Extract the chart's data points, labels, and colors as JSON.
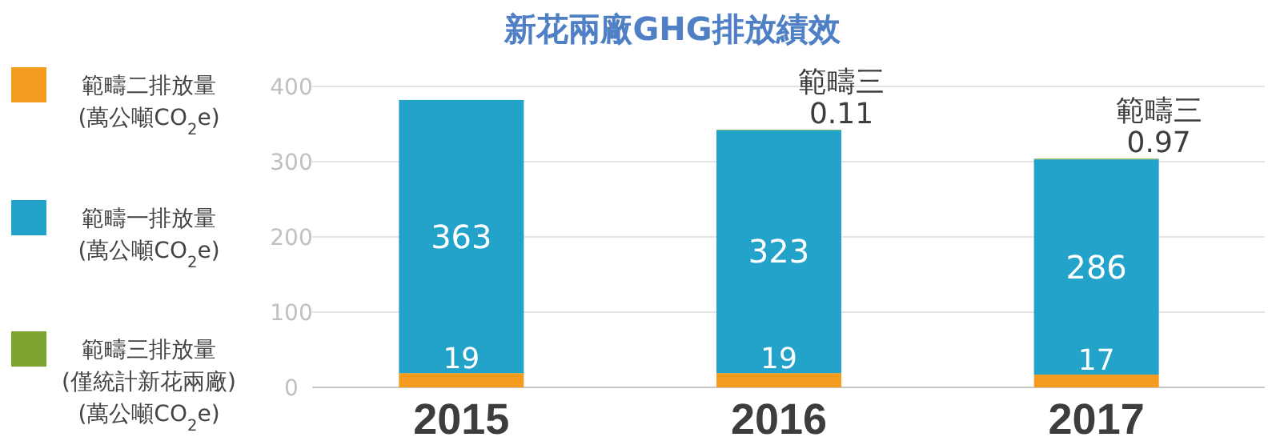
{
  "chart_data": {
    "type": "bar",
    "title": "新花兩廠GHG排放績效",
    "categories": [
      "2015",
      "2016",
      "2017"
    ],
    "stacked": true,
    "ylim": [
      0,
      400
    ],
    "yticks": [
      0,
      100,
      200,
      300,
      400
    ],
    "grid": "y",
    "legend": "left",
    "series": [
      {
        "name": "範疇二排放量\n(萬公噸CO$_{2}$e)",
        "color": "#f39c1f",
        "values": [
          19,
          19,
          17
        ],
        "value_labels": [
          "19",
          "19",
          "17"
        ]
      },
      {
        "name": "範疇一排放量\n(萬公噸CO$_{2}$e)",
        "color": "#23a3c9",
        "values": [
          363,
          323,
          286
        ],
        "value_labels": [
          "363",
          "323",
          "286"
        ]
      },
      {
        "name": "範疇三排放量\n(僅統計新花兩廠)\n(萬公噸CO$_{2}$e)",
        "color": "#7da431",
        "values": [
          null,
          0.11,
          0.97
        ],
        "value_labels": [
          null,
          "範疇三\n0.11",
          "範疇三\n0.97"
        ]
      }
    ]
  }
}
